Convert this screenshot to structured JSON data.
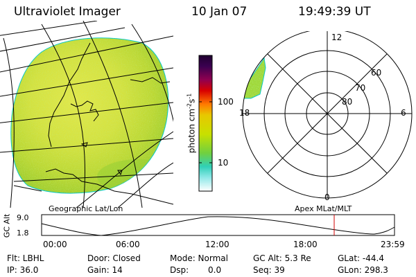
{
  "header": {
    "title": "Ultraviolet Imager",
    "date": "10 Jan 07",
    "time": "19:49:39 UT"
  },
  "colorbar": {
    "label": "photon cm",
    "label_sup1": "-2",
    "label_mid": "s",
    "label_sup2": "-1",
    "ticks": [
      "100",
      "10"
    ]
  },
  "polar": {
    "mlt_labels": {
      "top": "12",
      "left": "18",
      "right": "6",
      "bottom": "0"
    },
    "lat_labels": [
      "60",
      "70",
      "80"
    ]
  },
  "captions": {
    "left": "Geographic Lat/Lon",
    "right": "Apex MLat/MLT"
  },
  "orbit": {
    "ylabel": "GC Alt",
    "y_ticks": [
      "9.0",
      "1.8"
    ],
    "x_ticks": [
      "00:00",
      "06:00",
      "12:00",
      "18:00",
      "23:59"
    ],
    "current_time": "19:49:39",
    "marker_color": "#d00000"
  },
  "info": {
    "filter": "Flt: LBHL",
    "ip": "IP: 36.0",
    "door": "Door: Closed",
    "gain": "Gain: 14",
    "mode": "Mode: Normal",
    "dsp_label": "Dsp:",
    "dsp_value": "0.0",
    "gc_alt": "GC Alt: 5.3 Re",
    "seq": "Seq: 39",
    "glat": "GLat: -44.4",
    "glon": "GLon: 298.3"
  }
}
